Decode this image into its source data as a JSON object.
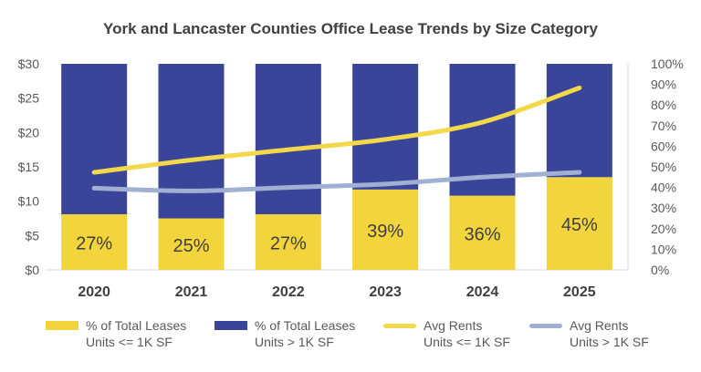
{
  "chart_data": {
    "type": "bar",
    "stacked": true,
    "title": "York and Lancaster Counties Office Lease Trends by Size Category",
    "categories": [
      "2020",
      "2021",
      "2022",
      "2023",
      "2024",
      "2025"
    ],
    "left_axis": {
      "ylim": [
        0,
        30
      ],
      "ticks": [
        0,
        5,
        10,
        15,
        20,
        25,
        30
      ],
      "tick_labels": [
        "$0",
        "$5",
        "$10",
        "$15",
        "$20",
        "$25",
        "$30"
      ]
    },
    "right_axis": {
      "ylim": [
        0,
        100
      ],
      "ticks": [
        0,
        10,
        20,
        30,
        40,
        50,
        60,
        70,
        80,
        90,
        100
      ],
      "tick_labels": [
        "0%",
        "10%",
        "20%",
        "30%",
        "40%",
        "50%",
        "60%",
        "70%",
        "80%",
        "90%",
        "100%"
      ]
    },
    "series": [
      {
        "name": "% of Total Leases Units <= 1K SF",
        "legend_lines": [
          "% of Total Leases",
          "Units <= 1K SF"
        ],
        "type": "bar",
        "axis": "right",
        "color": "#f2d43d",
        "values": [
          27,
          25,
          27,
          39,
          36,
          45
        ],
        "data_labels": [
          "27%",
          "25%",
          "27%",
          "39%",
          "36%",
          "45%"
        ]
      },
      {
        "name": "% of Total Leases Units > 1K SF",
        "legend_lines": [
          "% of Total Leases",
          "Units > 1K SF"
        ],
        "type": "bar",
        "axis": "right",
        "color": "#3a4599",
        "values": [
          73,
          75,
          73,
          61,
          64,
          55
        ]
      },
      {
        "name": "Avg Rents Units <= 1K SF",
        "legend_lines": [
          "Avg Rents",
          "Units <= 1K SF"
        ],
        "type": "line",
        "axis": "left",
        "color": "#f2d84a",
        "values": [
          14.2,
          16.0,
          17.5,
          19.0,
          21.5,
          26.5
        ]
      },
      {
        "name": "Avg Rents Units > 1K SF",
        "legend_lines": [
          "Avg Rents",
          "Units > 1K SF"
        ],
        "type": "line",
        "axis": "left",
        "color": "#9fb0d3",
        "values": [
          11.9,
          11.5,
          12.0,
          12.5,
          13.5,
          14.2
        ]
      }
    ],
    "legend_position": "bottom"
  }
}
